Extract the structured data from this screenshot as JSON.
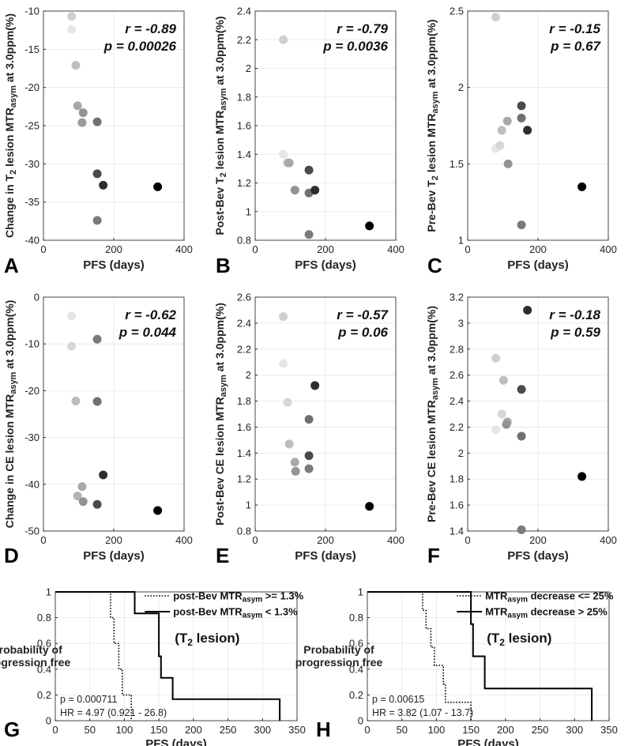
{
  "chart_data": [
    {
      "id": "A",
      "type": "scatter",
      "panel_label": "A",
      "xlabel": "PFS (days)",
      "ylabel": {
        "pre": "Change in T",
        "sub1": "2",
        "mid": " lesion MTR",
        "sub2": "asym",
        "post": " at 3.0ppm(%)"
      },
      "xlim": [
        0,
        400
      ],
      "ylim": [
        -40,
        -10
      ],
      "xticks": [
        0,
        200,
        400
      ],
      "yticks": [
        -40,
        -35,
        -30,
        -25,
        -20,
        -15,
        -10
      ],
      "r_text": "r = -0.89",
      "p_text": "p = 0.00026",
      "points": [
        {
          "x": 80,
          "y": -10.7,
          "color": "#cfcfcf"
        },
        {
          "x": 80,
          "y": -12.4,
          "color": "#e6e6e6"
        },
        {
          "x": 92,
          "y": -17.1,
          "color": "#bdbdbd"
        },
        {
          "x": 97,
          "y": -22.4,
          "color": "#a9a9a9"
        },
        {
          "x": 113,
          "y": -23.3,
          "color": "#939393"
        },
        {
          "x": 110,
          "y": -24.6,
          "color": "#9a9a9a"
        },
        {
          "x": 153,
          "y": -24.5,
          "color": "#707070"
        },
        {
          "x": 153,
          "y": -31.3,
          "color": "#4a4a4a"
        },
        {
          "x": 170,
          "y": -32.8,
          "color": "#2e2e2e"
        },
        {
          "x": 153,
          "y": -37.4,
          "color": "#7a7a7a"
        },
        {
          "x": 325,
          "y": -33.0,
          "color": "#000000"
        }
      ]
    },
    {
      "id": "B",
      "type": "scatter",
      "panel_label": "B",
      "xlabel": "PFS (days)",
      "ylabel": {
        "pre": "Post-Bev T",
        "sub1": "2",
        "mid": " lesion MTR",
        "sub2": "asym",
        "post": " at 3.0ppm(%)"
      },
      "xlim": [
        0,
        400
      ],
      "ylim": [
        0.8,
        2.4
      ],
      "xticks": [
        0,
        200,
        400
      ],
      "yticks": [
        0.8,
        1,
        1.2,
        1.4,
        1.6,
        1.8,
        2,
        2.2,
        2.4
      ],
      "r_text": "r = -0.79",
      "p_text": "p = 0.0036",
      "points": [
        {
          "x": 80,
          "y": 2.2,
          "color": "#cfcfcf"
        },
        {
          "x": 80,
          "y": 1.4,
          "color": "#e6e6e6"
        },
        {
          "x": 92,
          "y": 1.34,
          "color": "#bdbdbd"
        },
        {
          "x": 97,
          "y": 1.34,
          "color": "#a9a9a9"
        },
        {
          "x": 113,
          "y": 1.15,
          "color": "#939393"
        },
        {
          "x": 153,
          "y": 1.29,
          "color": "#4a4a4a"
        },
        {
          "x": 153,
          "y": 1.13,
          "color": "#707070"
        },
        {
          "x": 170,
          "y": 1.15,
          "color": "#2e2e2e"
        },
        {
          "x": 153,
          "y": 0.84,
          "color": "#7a7a7a"
        },
        {
          "x": 325,
          "y": 0.9,
          "color": "#000000"
        }
      ]
    },
    {
      "id": "C",
      "type": "scatter",
      "panel_label": "C",
      "xlabel": "PFS (days)",
      "ylabel": {
        "pre": "Pre-Bev T",
        "sub1": "2",
        "mid": " lesion MTR",
        "sub2": "asym",
        "post": " at 3.0ppm(%)"
      },
      "xlim": [
        0,
        400
      ],
      "ylim": [
        1,
        2.5
      ],
      "xticks": [
        0,
        200,
        400
      ],
      "yticks": [
        1,
        1.5,
        2,
        2.5
      ],
      "r_text": "r = -0.15",
      "p_text": "p = 0.67",
      "points": [
        {
          "x": 80,
          "y": 2.46,
          "color": "#cfcfcf"
        },
        {
          "x": 80,
          "y": 1.6,
          "color": "#e6e6e6"
        },
        {
          "x": 92,
          "y": 1.62,
          "color": "#d6d6d6"
        },
        {
          "x": 97,
          "y": 1.72,
          "color": "#bdbdbd"
        },
        {
          "x": 113,
          "y": 1.78,
          "color": "#a9a9a9"
        },
        {
          "x": 115,
          "y": 1.5,
          "color": "#939393"
        },
        {
          "x": 153,
          "y": 1.88,
          "color": "#4a4a4a"
        },
        {
          "x": 153,
          "y": 1.8,
          "color": "#707070"
        },
        {
          "x": 170,
          "y": 1.72,
          "color": "#2e2e2e"
        },
        {
          "x": 153,
          "y": 1.1,
          "color": "#7a7a7a"
        },
        {
          "x": 325,
          "y": 1.35,
          "color": "#000000"
        }
      ]
    },
    {
      "id": "D",
      "type": "scatter",
      "panel_label": "D",
      "xlabel": "PFS (days)",
      "ylabel": {
        "pre": "Change in CE lesion MTR",
        "sub1": "",
        "mid": "",
        "sub2": "asym",
        "post": " at 3.0ppm(%)"
      },
      "xlim": [
        0,
        400
      ],
      "ylim": [
        -50,
        0
      ],
      "xticks": [
        0,
        200,
        400
      ],
      "yticks": [
        -50,
        -40,
        -30,
        -20,
        -10,
        0
      ],
      "r_text": "r = -0.62",
      "p_text": "p = 0.044",
      "points": [
        {
          "x": 80,
          "y": -4,
          "color": "#e6e6e6"
        },
        {
          "x": 80,
          "y": -10.5,
          "color": "#d6d6d6"
        },
        {
          "x": 92,
          "y": -22.2,
          "color": "#bdbdbd"
        },
        {
          "x": 153,
          "y": -9,
          "color": "#7a7a7a"
        },
        {
          "x": 153,
          "y": -22.3,
          "color": "#707070"
        },
        {
          "x": 110,
          "y": -40.5,
          "color": "#a9a9a9"
        },
        {
          "x": 97,
          "y": -42.5,
          "color": "#b4b4b4"
        },
        {
          "x": 113,
          "y": -43.7,
          "color": "#939393"
        },
        {
          "x": 170,
          "y": -38,
          "color": "#2e2e2e"
        },
        {
          "x": 153,
          "y": -44.3,
          "color": "#4a4a4a"
        },
        {
          "x": 325,
          "y": -45.6,
          "color": "#000000"
        }
      ]
    },
    {
      "id": "E",
      "type": "scatter",
      "panel_label": "E",
      "xlabel": "PFS (days)",
      "ylabel": {
        "pre": "Post-Bev CE lesion MTR",
        "sub1": "",
        "mid": "",
        "sub2": "asym",
        "post": " at 3.0ppm(%)"
      },
      "xlim": [
        0,
        400
      ],
      "ylim": [
        0.8,
        2.6
      ],
      "xticks": [
        0,
        200,
        400
      ],
      "yticks": [
        0.8,
        1,
        1.2,
        1.4,
        1.6,
        1.8,
        2,
        2.2,
        2.4,
        2.6
      ],
      "r_text": "r = -0.57",
      "p_text": "p = 0.06",
      "points": [
        {
          "x": 80,
          "y": 2.45,
          "color": "#cfcfcf"
        },
        {
          "x": 80,
          "y": 2.09,
          "color": "#e6e6e6"
        },
        {
          "x": 92,
          "y": 1.79,
          "color": "#d6d6d6"
        },
        {
          "x": 97,
          "y": 1.47,
          "color": "#bdbdbd"
        },
        {
          "x": 113,
          "y": 1.33,
          "color": "#a9a9a9"
        },
        {
          "x": 115,
          "y": 1.26,
          "color": "#939393"
        },
        {
          "x": 153,
          "y": 1.66,
          "color": "#707070"
        },
        {
          "x": 153,
          "y": 1.38,
          "color": "#4a4a4a"
        },
        {
          "x": 153,
          "y": 1.28,
          "color": "#7a7a7a"
        },
        {
          "x": 170,
          "y": 1.92,
          "color": "#2e2e2e"
        },
        {
          "x": 325,
          "y": 0.99,
          "color": "#000000"
        }
      ]
    },
    {
      "id": "F",
      "type": "scatter",
      "panel_label": "F",
      "xlabel": "PFS (days)",
      "ylabel": {
        "pre": "Pre-Bev CE lesion MTR",
        "sub1": "",
        "mid": "",
        "sub2": "asym",
        "post": " at 3.0ppm(%)"
      },
      "xlim": [
        0,
        400
      ],
      "ylim": [
        1.4,
        3.2
      ],
      "xticks": [
        0,
        200,
        400
      ],
      "yticks": [
        1.4,
        1.6,
        1.8,
        2,
        2.2,
        2.4,
        2.6,
        2.8,
        3,
        3.2
      ],
      "r_text": "r = -0.18",
      "p_text": "p = 0.59",
      "points": [
        {
          "x": 80,
          "y": 2.73,
          "color": "#cfcfcf"
        },
        {
          "x": 80,
          "y": 2.18,
          "color": "#e6e6e6"
        },
        {
          "x": 97,
          "y": 2.3,
          "color": "#d6d6d6"
        },
        {
          "x": 102,
          "y": 2.56,
          "color": "#bdbdbd"
        },
        {
          "x": 113,
          "y": 2.24,
          "color": "#a9a9a9"
        },
        {
          "x": 110,
          "y": 2.22,
          "color": "#939393"
        },
        {
          "x": 153,
          "y": 2.49,
          "color": "#4a4a4a"
        },
        {
          "x": 153,
          "y": 2.13,
          "color": "#707070"
        },
        {
          "x": 170,
          "y": 3.1,
          "color": "#2e2e2e"
        },
        {
          "x": 153,
          "y": 1.41,
          "color": "#7a7a7a"
        },
        {
          "x": 325,
          "y": 1.82,
          "color": "#000000"
        }
      ]
    },
    {
      "id": "G",
      "type": "line",
      "panel_label": "G",
      "subtype": "kaplan-meier",
      "xlabel": "PFS (days)",
      "ylabel_lines": [
        "Probability of",
        "progression free"
      ],
      "xlim": [
        0,
        350
      ],
      "ylim": [
        0,
        1
      ],
      "xticks": [
        0,
        50,
        100,
        150,
        200,
        250,
        300,
        350
      ],
      "yticks": [
        0,
        0.2,
        0.4,
        0.6,
        0.8,
        1
      ],
      "legend": [
        {
          "style": "dotted",
          "pre": "post-Bev MTR",
          "sub": "asym",
          "post": " >= 1.3%"
        },
        {
          "style": "solid",
          "pre": "post-Bev MTR",
          "sub": "asym",
          "post": " < 1.3%"
        }
      ],
      "lesion_note": {
        "pre": "(T",
        "sub": "2",
        "post": " lesion)"
      },
      "p_text": "p = 0.000711",
      "hr_text": "HR = 4.97 (0.921 - 26.8)",
      "series": [
        {
          "name": "post-Bev MTRasym >= 1.3%",
          "style": "dotted",
          "steps": [
            [
              0,
              1
            ],
            [
              80,
              1
            ],
            [
              80,
              0.8
            ],
            [
              85,
              0.8
            ],
            [
              85,
              0.6
            ],
            [
              92,
              0.6
            ],
            [
              92,
              0.4
            ],
            [
              97,
              0.4
            ],
            [
              97,
              0.2
            ],
            [
              110,
              0.2
            ],
            [
              110,
              0
            ]
          ]
        },
        {
          "name": "post-Bev MTRasym < 1.3%",
          "style": "solid",
          "steps": [
            [
              0,
              1
            ],
            [
              115,
              1
            ],
            [
              115,
              0.833
            ],
            [
              150,
              0.833
            ],
            [
              150,
              0.5
            ],
            [
              153,
              0.5
            ],
            [
              153,
              0.333
            ],
            [
              170,
              0.333
            ],
            [
              170,
              0.167
            ],
            [
              325,
              0.167
            ],
            [
              325,
              0
            ]
          ]
        }
      ]
    },
    {
      "id": "H",
      "type": "line",
      "panel_label": "H",
      "subtype": "kaplan-meier",
      "xlabel": "PFS (days)",
      "ylabel_lines": [
        "Probability of",
        "progression free"
      ],
      "xlim": [
        0,
        350
      ],
      "ylim": [
        0,
        1
      ],
      "xticks": [
        0,
        50,
        100,
        150,
        200,
        250,
        300,
        350
      ],
      "yticks": [
        0,
        0.2,
        0.4,
        0.6,
        0.8,
        1
      ],
      "legend": [
        {
          "style": "dotted",
          "pre": "MTR",
          "sub": "asym",
          "post": " decrease <= 25%"
        },
        {
          "style": "solid",
          "pre": "MTR",
          "sub": "asym",
          "post": " decrease > 25%"
        }
      ],
      "lesion_note": {
        "pre": "(T",
        "sub": "2",
        "post": " lesion)"
      },
      "p_text": "p = 0.00615",
      "hr_text": "HR = 3.82 (1.07 - 13.7)",
      "series": [
        {
          "name": "MTRasym decrease <= 25%",
          "style": "dotted",
          "steps": [
            [
              0,
              1
            ],
            [
              80,
              1
            ],
            [
              80,
              0.857
            ],
            [
              85,
              0.857
            ],
            [
              85,
              0.714
            ],
            [
              92,
              0.714
            ],
            [
              92,
              0.571
            ],
            [
              97,
              0.571
            ],
            [
              97,
              0.429
            ],
            [
              110,
              0.429
            ],
            [
              110,
              0.286
            ],
            [
              113,
              0.286
            ],
            [
              113,
              0.143
            ],
            [
              150,
              0.143
            ],
            [
              150,
              0
            ]
          ]
        },
        {
          "name": "MTRasym decrease > 25%",
          "style": "solid",
          "steps": [
            [
              0,
              1
            ],
            [
              150,
              1
            ],
            [
              150,
              0.75
            ],
            [
              153,
              0.75
            ],
            [
              153,
              0.5
            ],
            [
              170,
              0.5
            ],
            [
              170,
              0.25
            ],
            [
              325,
              0.25
            ],
            [
              325,
              0
            ]
          ]
        }
      ]
    }
  ]
}
